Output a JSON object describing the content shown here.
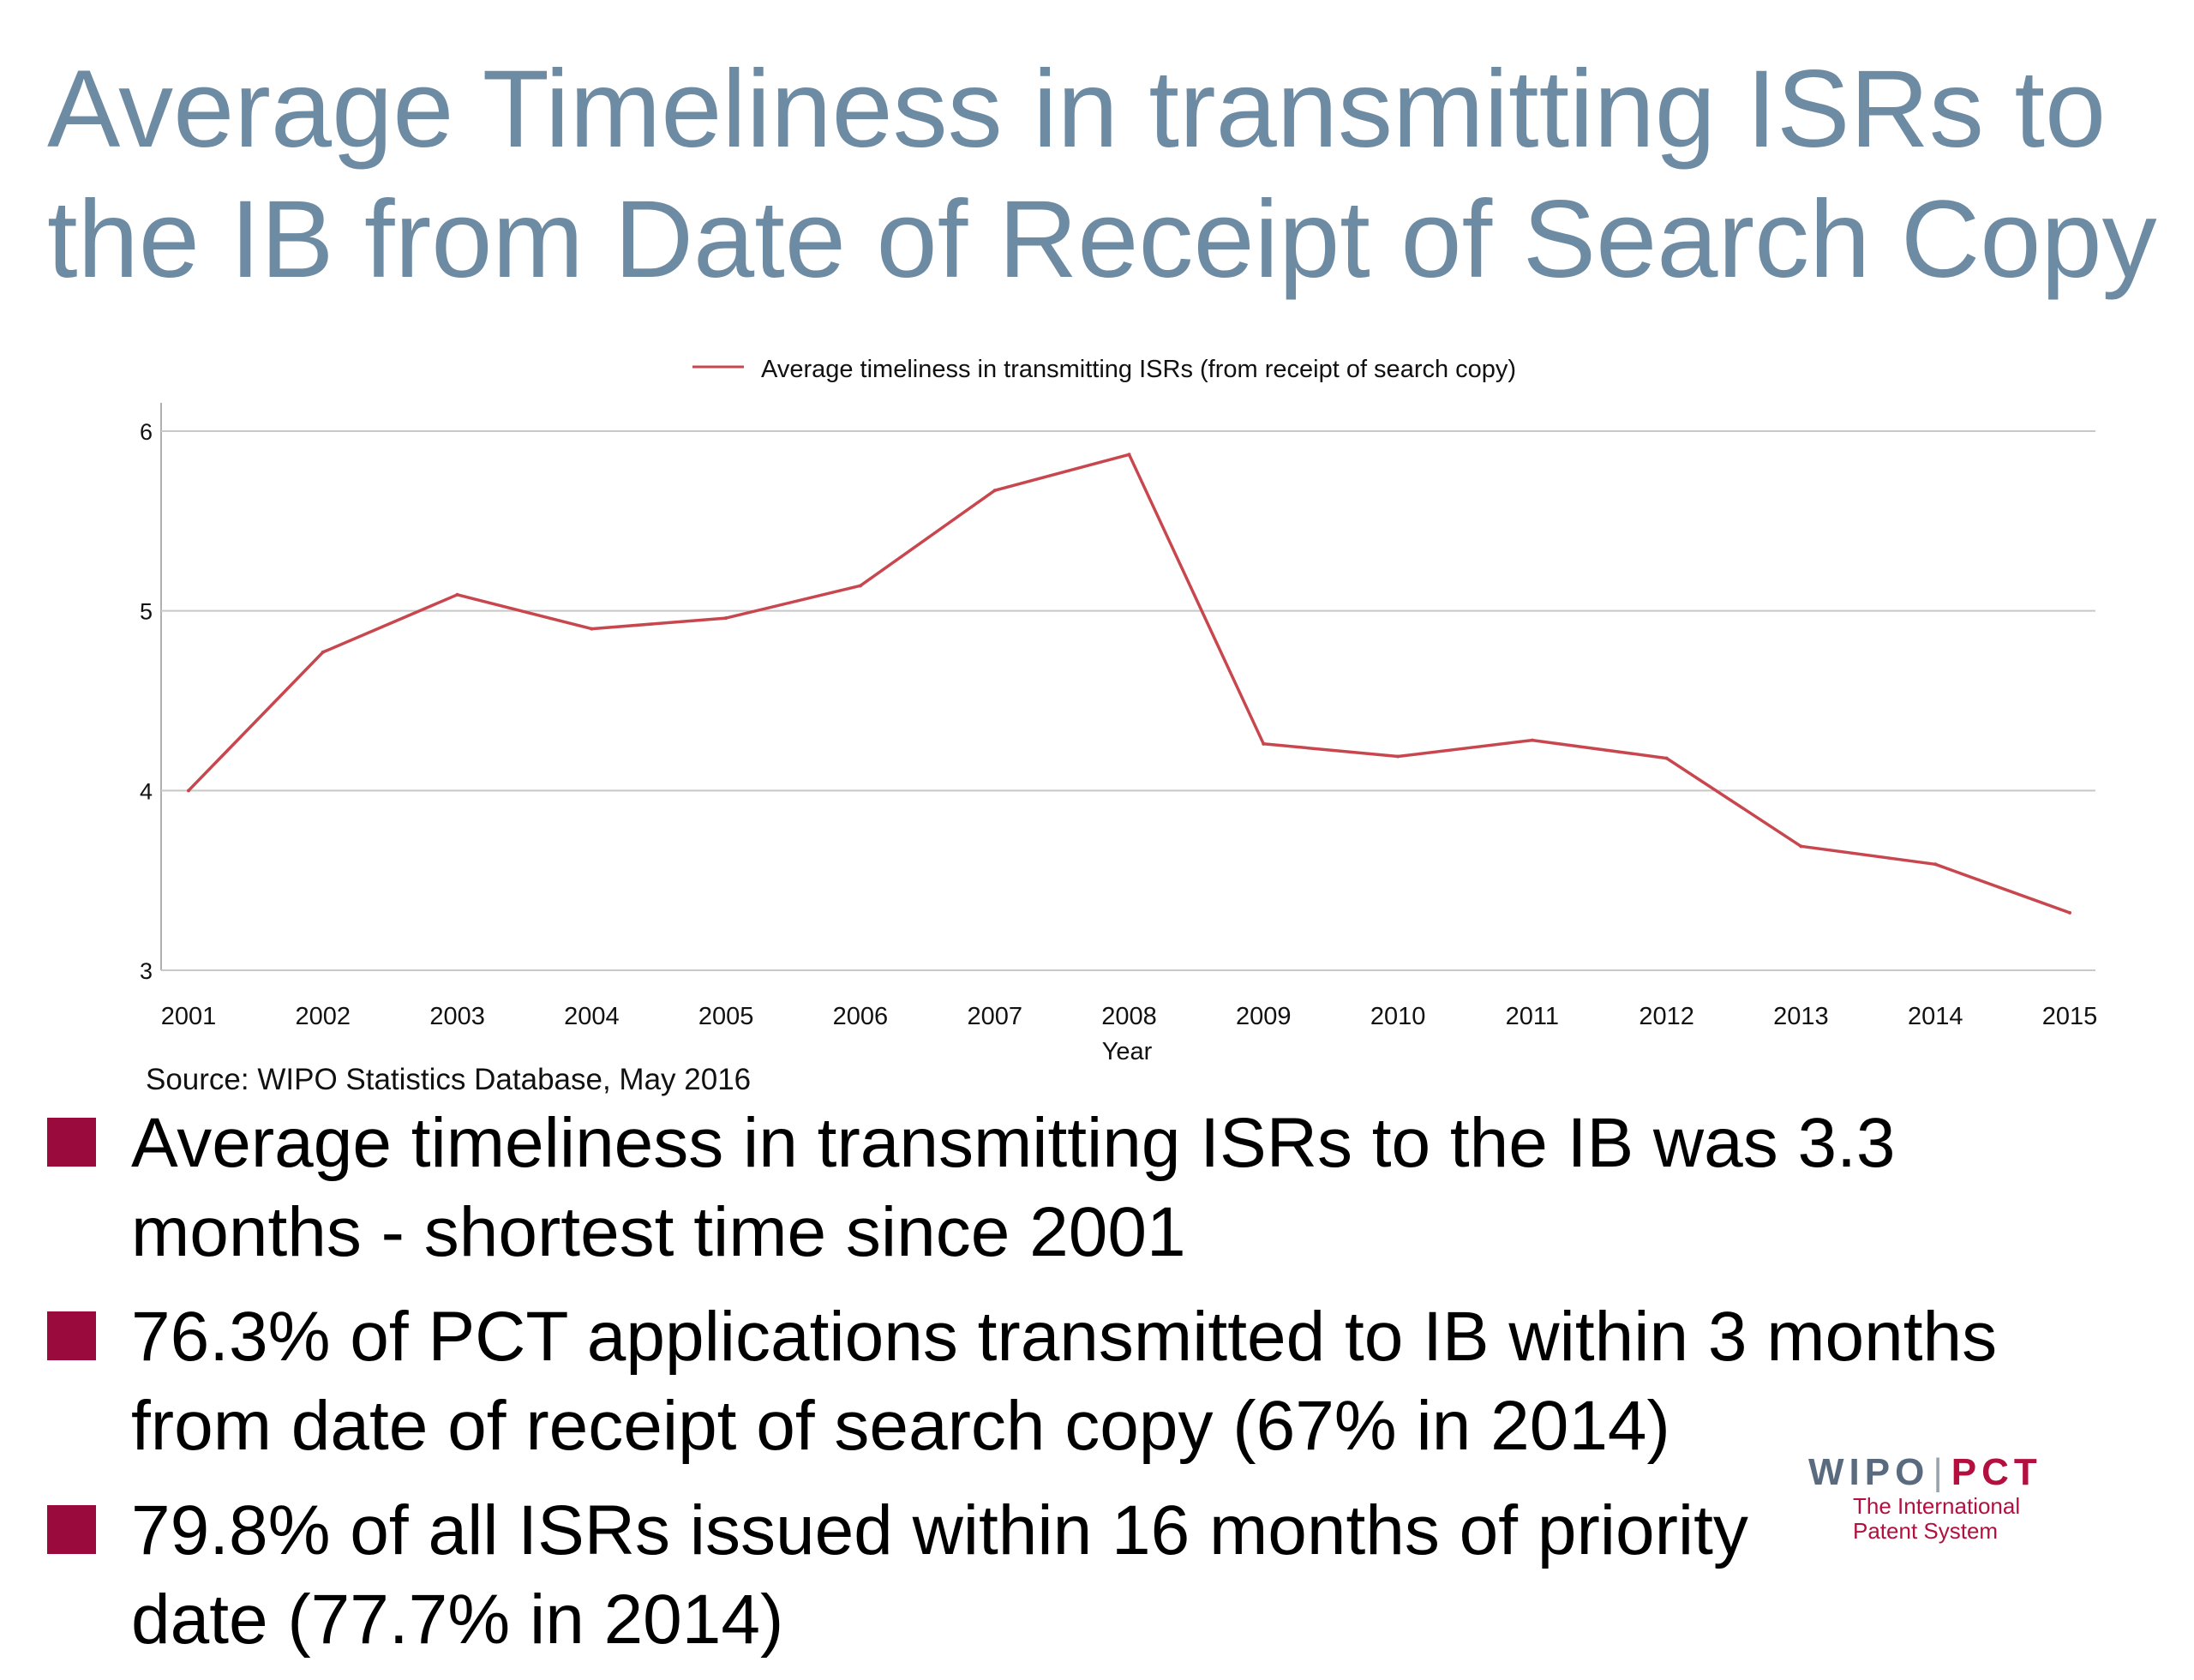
{
  "slide": {
    "title_line1": "Average Timeliness in transmitting ISRs to",
    "title_line2": "the IB from Date of Receipt of Search Copy",
    "source": "Source: WIPO Statistics Database, May 2016"
  },
  "bullets": [
    "Average timeliness in transmitting ISRs to the IB was 3.3 months - shortest time since 2001",
    "76.3% of PCT applications transmitted to IB within 3 months from date of receipt of search copy (67% in 2014)",
    "79.8% of all ISRs issued within 16 months of priority date (77.7% in 2014)"
  ],
  "logo": {
    "wipo": "WIPO",
    "separator": "|",
    "pct": "PCT",
    "sub_line1": "The International",
    "sub_line2": "Patent System"
  },
  "colors": {
    "title": "#6e8ba4",
    "series_line": "#c8474e",
    "bullet_square": "#9b0a3c",
    "gridline": "#c8c8c8"
  },
  "chart_data": {
    "type": "line",
    "title": "",
    "xlabel": "Year",
    "ylabel": "",
    "x": [
      "2001",
      "2002",
      "2003",
      "2004",
      "2005",
      "2006",
      "2007",
      "2008",
      "2009",
      "2010",
      "2011",
      "2012",
      "2013",
      "2014",
      "2015"
    ],
    "series": [
      {
        "name": "Average timeliness in transmitting ISRs (from receipt of search copy)",
        "values": [
          4.0,
          4.77,
          5.09,
          4.9,
          4.96,
          5.14,
          5.67,
          5.87,
          4.26,
          4.19,
          4.28,
          4.18,
          3.69,
          3.59,
          3.32
        ],
        "color": "#c8474e"
      }
    ],
    "yticks": [
      "3",
      "4",
      "5",
      "6"
    ],
    "ylim": [
      3,
      6
    ],
    "grid": "horizontal",
    "legend_position": "top-center"
  }
}
